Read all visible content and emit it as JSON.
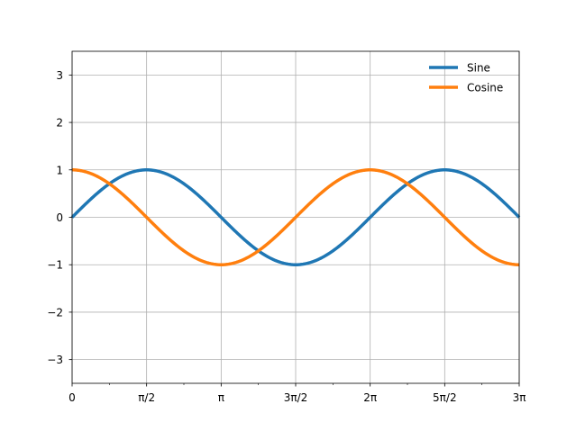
{
  "chart_data": {
    "type": "line",
    "title": "",
    "xlabel": "",
    "ylabel": "",
    "xlim": [
      0,
      9.42477796
    ],
    "ylim": [
      -3.5,
      3.5
    ],
    "grid": true,
    "legend": {
      "placement": "top-right",
      "frame": false
    },
    "x_ticks": [
      {
        "value": 0,
        "label": "0"
      },
      {
        "value": 1.5707963,
        "label": "π/2"
      },
      {
        "value": 3.1415927,
        "label": "π"
      },
      {
        "value": 4.712389,
        "label": "3π/2"
      },
      {
        "value": 6.2831853,
        "label": "2π"
      },
      {
        "value": 7.8539816,
        "label": "5π/2"
      },
      {
        "value": 9.424778,
        "label": "3π"
      }
    ],
    "x_minor_ticks": [
      0.7853982,
      2.3561945,
      3.9269908,
      5.4977871,
      7.0685835,
      8.6393798
    ],
    "y_ticks": [
      {
        "value": -3,
        "label": "−3"
      },
      {
        "value": -2,
        "label": "−2"
      },
      {
        "value": -1,
        "label": "−1"
      },
      {
        "value": 0,
        "label": "0"
      },
      {
        "value": 1,
        "label": "1"
      },
      {
        "value": 2,
        "label": "2"
      },
      {
        "value": 3,
        "label": "3"
      }
    ],
    "series": [
      {
        "name": "Sine",
        "function": "sin",
        "color": "#1f77b4"
      },
      {
        "name": "Cosine",
        "function": "cos",
        "color": "#ff7f0e"
      }
    ]
  }
}
